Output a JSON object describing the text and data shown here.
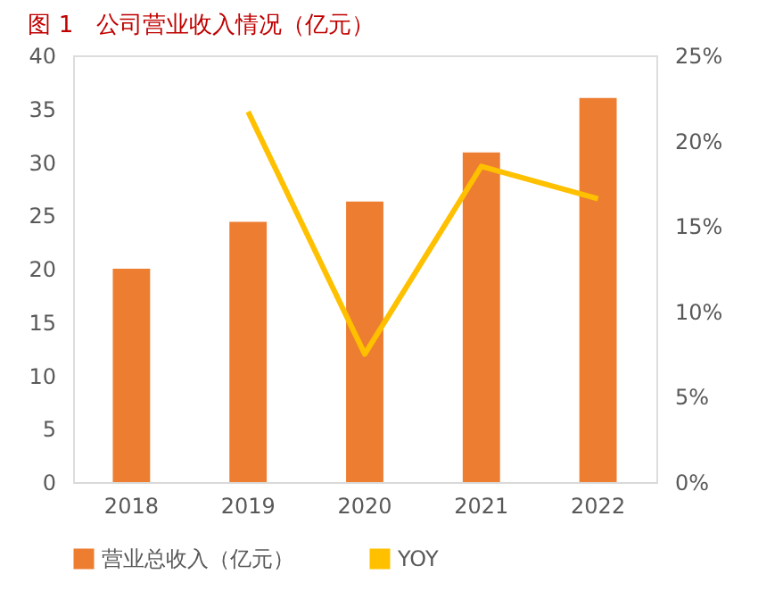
{
  "chart_data": {
    "type": "bar",
    "title": "图 1　公司营业收入情况（亿元）",
    "categories": [
      "2018",
      "2019",
      "2020",
      "2021",
      "2022"
    ],
    "series": [
      {
        "name": "营业总收入（亿元）",
        "color": "#ed7d31",
        "values": [
          20.0,
          24.4,
          26.3,
          30.9,
          36.0
        ]
      },
      {
        "name": "YOY",
        "color": "#ffc000",
        "type": "line",
        "axis": "y2",
        "values": [
          null,
          21.7,
          7.5,
          18.5,
          16.6
        ]
      }
    ],
    "ylim": [
      0,
      40
    ],
    "yticks": [
      0,
      5,
      10,
      15,
      20,
      25,
      30,
      35,
      40
    ],
    "y2lim": [
      0,
      25
    ],
    "y2ticks": [
      {
        "value": 0,
        "label": "0%"
      },
      {
        "value": 5,
        "label": "5%"
      },
      {
        "value": 10,
        "label": "10%"
      },
      {
        "value": 15,
        "label": "15%"
      },
      {
        "value": 20,
        "label": "20%"
      },
      {
        "value": 25,
        "label": "25%"
      }
    ],
    "grid": false,
    "legend": "bottom",
    "marker": "none",
    "line_style": "solid"
  }
}
